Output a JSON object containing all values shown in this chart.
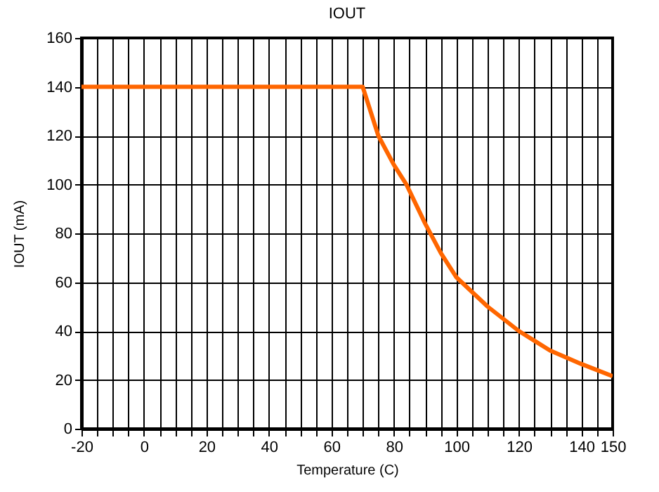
{
  "chart_data": {
    "type": "line",
    "title": "IOUT",
    "xlabel": "Temperature (C)",
    "ylabel": "IOUT (mA)",
    "x": [
      -20,
      70,
      75,
      80,
      84,
      90,
      95,
      100,
      110,
      120,
      130,
      140,
      150
    ],
    "series": [
      {
        "color": "#ff6600",
        "values": [
          140,
          140,
          120,
          108,
          100,
          84,
          72,
          62,
          50,
          40,
          32,
          26.5,
          21.5
        ]
      }
    ],
    "xlim": [
      -20,
      150
    ],
    "ylim": [
      0,
      160
    ],
    "xticks": [
      -20,
      {
        "value": -15,
        "label": null
      },
      {
        "value": -10,
        "label": null
      },
      {
        "value": -5,
        "label": null
      },
      0,
      {
        "value": 5,
        "label": null
      },
      {
        "value": 10,
        "label": null
      },
      {
        "value": 15,
        "label": null
      },
      20,
      {
        "value": 25,
        "label": null
      },
      {
        "value": 30,
        "label": null
      },
      {
        "value": 35,
        "label": null
      },
      40,
      {
        "value": 45,
        "label": null
      },
      {
        "value": 50,
        "label": null
      },
      {
        "value": 55,
        "label": null
      },
      60,
      {
        "value": 65,
        "label": null
      },
      {
        "value": 70,
        "label": null
      },
      {
        "value": 75,
        "label": null
      },
      80,
      {
        "value": 85,
        "label": null
      },
      {
        "value": 90,
        "label": null
      },
      {
        "value": 95,
        "label": null
      },
      100,
      {
        "value": 105,
        "label": null
      },
      {
        "value": 110,
        "label": null
      },
      {
        "value": 115,
        "label": null
      },
      120,
      {
        "value": 125,
        "label": null
      },
      {
        "value": 130,
        "label": null
      },
      {
        "value": 135,
        "label": null
      },
      140,
      {
        "value": 145,
        "label": null
      },
      150
    ],
    "yticks": [
      0,
      20,
      40,
      60,
      80,
      100,
      120,
      140,
      160
    ],
    "grid": true,
    "marker": "none",
    "line_style": "solid"
  }
}
